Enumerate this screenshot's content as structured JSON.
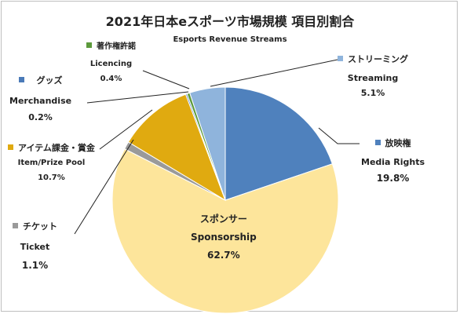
{
  "chart_data": {
    "type": "pie",
    "title": "2021年日本eスポーツ市場規模 項目別割合",
    "subtitle": "Esports Revenue Streams",
    "slices": [
      {
        "label_ja": "ストリーミング",
        "label_en": "Streaming",
        "value": 5.1,
        "pct": "5.1%",
        "color": "#8fb4dc"
      },
      {
        "label_ja": "放映権",
        "label_en": "Media Rights",
        "value": 19.8,
        "pct": "19.8%",
        "color": "#4f81bd"
      },
      {
        "label_ja": "スポンサー",
        "label_en": "Sponsorship",
        "value": 62.7,
        "pct": "62.7%",
        "color": "#fde59b"
      },
      {
        "label_ja": "チケット",
        "label_en": "Ticket",
        "value": 1.1,
        "pct": "1.1%",
        "color": "#9a9a9a"
      },
      {
        "label_ja": "アイテム課金・賞金",
        "label_en": "Item/Prize Pool",
        "value": 10.7,
        "pct": "10.7%",
        "color": "#e0aa10"
      },
      {
        "label_ja": "グッズ",
        "label_en": "Merchandise",
        "value": 0.2,
        "pct": "0.2%",
        "color": "#4a7ab8"
      },
      {
        "label_ja": "著作権許諾",
        "label_en": "Licencing",
        "value": 0.4,
        "pct": "0.4%",
        "color": "#5c9a3c"
      }
    ]
  }
}
